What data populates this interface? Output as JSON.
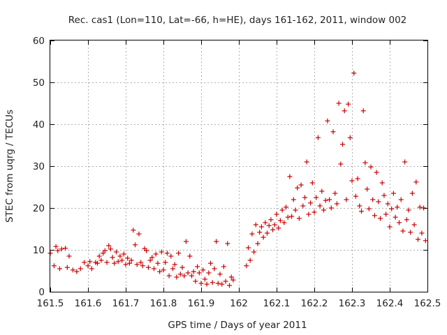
{
  "chart_data": {
    "type": "scatter",
    "title": "Rec. cas1 (Lon=110, Lat=-66, h=HE), days 161-162, 2011, window 002",
    "xlabel": "GPS time / Days of year 2011",
    "ylabel": "STEC from uqrg / TECUs",
    "xlim": [
      161.5,
      162.5
    ],
    "ylim": [
      0,
      60
    ],
    "xticks": [
      "161.5",
      "161.6",
      "161.7",
      "161.8",
      "161.9",
      "162",
      "162.1",
      "162.2",
      "162.3",
      "162.4",
      "162.5"
    ],
    "yticks": [
      "0",
      "10",
      "20",
      "30",
      "40",
      "50",
      "60"
    ],
    "grid": true,
    "marker": "plus",
    "color": "#cc0000",
    "series": [
      {
        "points": [
          [
            161.5,
            9.2
          ],
          [
            161.51,
            6.2
          ],
          [
            161.515,
            10.8
          ],
          [
            161.52,
            9.8
          ],
          [
            161.525,
            5.5
          ],
          [
            161.53,
            10.2
          ],
          [
            161.54,
            10.4
          ],
          [
            161.545,
            5.8
          ],
          [
            161.55,
            8.5
          ],
          [
            161.56,
            5.2
          ],
          [
            161.57,
            4.8
          ],
          [
            161.58,
            5.5
          ],
          [
            161.59,
            7.0
          ],
          [
            161.6,
            6.2
          ],
          [
            161.605,
            7.2
          ],
          [
            161.61,
            5.5
          ],
          [
            161.62,
            7.0
          ],
          [
            161.625,
            6.8
          ],
          [
            161.63,
            8.5
          ],
          [
            161.635,
            7.5
          ],
          [
            161.64,
            9.2
          ],
          [
            161.645,
            9.8
          ],
          [
            161.65,
            7.0
          ],
          [
            161.655,
            11.0
          ],
          [
            161.66,
            10.2
          ],
          [
            161.665,
            8.2
          ],
          [
            161.67,
            6.8
          ],
          [
            161.675,
            9.5
          ],
          [
            161.68,
            7.2
          ],
          [
            161.685,
            8.5
          ],
          [
            161.69,
            7.5
          ],
          [
            161.695,
            9.0
          ],
          [
            161.7,
            6.5
          ],
          [
            161.705,
            8.0
          ],
          [
            161.71,
            6.8
          ],
          [
            161.715,
            7.5
          ],
          [
            161.72,
            14.7
          ],
          [
            161.725,
            11.2
          ],
          [
            161.73,
            6.5
          ],
          [
            161.735,
            13.8
          ],
          [
            161.74,
            7.0
          ],
          [
            161.745,
            6.2
          ],
          [
            161.75,
            10.3
          ],
          [
            161.755,
            9.8
          ],
          [
            161.76,
            5.8
          ],
          [
            161.765,
            7.5
          ],
          [
            161.77,
            8.2
          ],
          [
            161.775,
            5.5
          ],
          [
            161.78,
            9.0
          ],
          [
            161.785,
            6.8
          ],
          [
            161.79,
            4.8
          ],
          [
            161.795,
            9.5
          ],
          [
            161.8,
            5.2
          ],
          [
            161.805,
            7.0
          ],
          [
            161.81,
            9.2
          ],
          [
            161.815,
            3.8
          ],
          [
            161.82,
            8.5
          ],
          [
            161.825,
            5.5
          ],
          [
            161.83,
            6.5
          ],
          [
            161.835,
            3.5
          ],
          [
            161.84,
            9.2
          ],
          [
            161.845,
            4.2
          ],
          [
            161.85,
            5.8
          ],
          [
            161.855,
            3.8
          ],
          [
            161.86,
            12.0
          ],
          [
            161.865,
            4.5
          ],
          [
            161.87,
            8.5
          ],
          [
            161.875,
            3.8
          ],
          [
            161.88,
            4.8
          ],
          [
            161.885,
            2.5
          ],
          [
            161.89,
            6.0
          ],
          [
            161.895,
            4.5
          ],
          [
            161.9,
            2.0
          ],
          [
            161.905,
            5.2
          ],
          [
            161.91,
            3.0
          ],
          [
            161.915,
            1.8
          ],
          [
            161.92,
            4.5
          ],
          [
            161.925,
            6.8
          ],
          [
            161.93,
            2.2
          ],
          [
            161.935,
            5.5
          ],
          [
            161.94,
            12.0
          ],
          [
            161.945,
            2.0
          ],
          [
            161.95,
            4.2
          ],
          [
            161.955,
            1.8
          ],
          [
            161.96,
            6.0
          ],
          [
            161.965,
            2.5
          ],
          [
            161.97,
            11.5
          ],
          [
            161.975,
            1.5
          ],
          [
            161.98,
            3.5
          ],
          [
            161.985,
            2.8
          ],
          [
            162.02,
            6.2
          ],
          [
            162.025,
            10.5
          ],
          [
            162.03,
            7.5
          ],
          [
            162.035,
            13.8
          ],
          [
            162.04,
            9.5
          ],
          [
            162.045,
            16.0
          ],
          [
            162.05,
            11.5
          ],
          [
            162.055,
            14.2
          ],
          [
            162.06,
            15.5
          ],
          [
            162.065,
            13.0
          ],
          [
            162.07,
            16.5
          ],
          [
            162.075,
            14.0
          ],
          [
            162.08,
            15.8
          ],
          [
            162.085,
            17.2
          ],
          [
            162.09,
            14.8
          ],
          [
            162.095,
            16.0
          ],
          [
            162.1,
            18.5
          ],
          [
            162.105,
            15.2
          ],
          [
            162.11,
            17.0
          ],
          [
            162.115,
            19.5
          ],
          [
            162.12,
            16.5
          ],
          [
            162.125,
            20.2
          ],
          [
            162.13,
            17.8
          ],
          [
            162.135,
            27.5
          ],
          [
            162.14,
            18.0
          ],
          [
            162.145,
            22.0
          ],
          [
            162.15,
            19.5
          ],
          [
            162.155,
            24.8
          ],
          [
            162.16,
            17.5
          ],
          [
            162.165,
            25.5
          ],
          [
            162.17,
            20.5
          ],
          [
            162.175,
            22.5
          ],
          [
            162.18,
            31.0
          ],
          [
            162.185,
            18.5
          ],
          [
            162.19,
            21.2
          ],
          [
            162.195,
            26.0
          ],
          [
            162.2,
            19.0
          ],
          [
            162.205,
            22.5
          ],
          [
            162.21,
            36.8
          ],
          [
            162.215,
            20.5
          ],
          [
            162.22,
            24.0
          ],
          [
            162.225,
            19.5
          ],
          [
            162.23,
            21.8
          ],
          [
            162.235,
            40.8
          ],
          [
            162.24,
            22.0
          ],
          [
            162.245,
            20.0
          ],
          [
            162.25,
            38.2
          ],
          [
            162.255,
            23.5
          ],
          [
            162.26,
            21.0
          ],
          [
            162.265,
            45.0
          ],
          [
            162.27,
            30.5
          ],
          [
            162.275,
            35.2
          ],
          [
            162.28,
            43.2
          ],
          [
            162.285,
            22.0
          ],
          [
            162.29,
            44.8
          ],
          [
            162.295,
            36.8
          ],
          [
            162.3,
            26.5
          ],
          [
            162.305,
            52.2
          ],
          [
            162.31,
            22.8
          ],
          [
            162.315,
            27.0
          ],
          [
            162.32,
            20.5
          ],
          [
            162.325,
            19.2
          ],
          [
            162.33,
            43.2
          ],
          [
            162.335,
            30.8
          ],
          [
            162.34,
            24.5
          ],
          [
            162.345,
            19.8
          ],
          [
            162.35,
            29.8
          ],
          [
            162.355,
            22.0
          ],
          [
            162.36,
            18.2
          ],
          [
            162.365,
            28.5
          ],
          [
            162.37,
            21.5
          ],
          [
            162.375,
            17.5
          ],
          [
            162.38,
            26.0
          ],
          [
            162.385,
            23.0
          ],
          [
            162.39,
            18.5
          ],
          [
            162.395,
            21.0
          ],
          [
            162.4,
            15.5
          ],
          [
            162.405,
            19.8
          ],
          [
            162.41,
            23.5
          ],
          [
            162.415,
            17.8
          ],
          [
            162.42,
            20.2
          ],
          [
            162.425,
            16.5
          ],
          [
            162.43,
            22.0
          ],
          [
            162.435,
            14.5
          ],
          [
            162.44,
            31.0
          ],
          [
            162.445,
            17.2
          ],
          [
            162.45,
            19.5
          ],
          [
            162.455,
            14.2
          ],
          [
            162.46,
            23.5
          ],
          [
            162.465,
            16.0
          ],
          [
            162.47,
            26.2
          ],
          [
            162.475,
            12.5
          ],
          [
            162.48,
            20.2
          ],
          [
            162.485,
            14.0
          ],
          [
            162.49,
            20.0
          ],
          [
            162.495,
            12.2
          ]
        ]
      }
    ]
  }
}
